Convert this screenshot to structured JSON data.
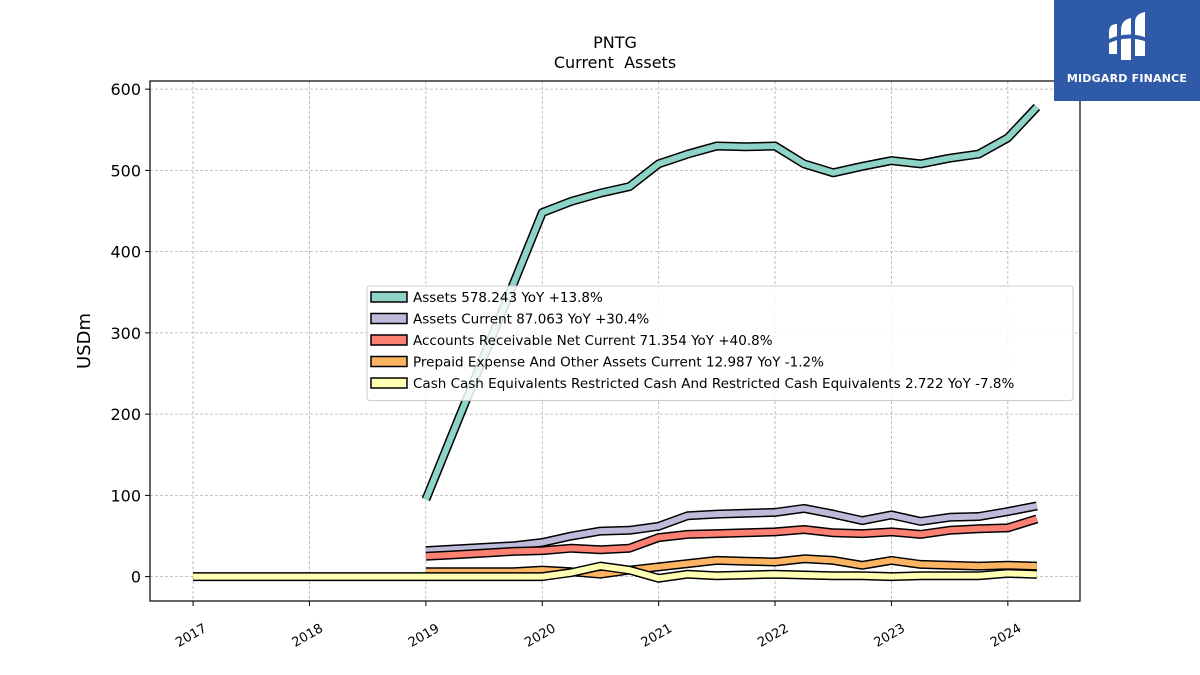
{
  "chart_data": {
    "type": "line",
    "title": "PNTG",
    "subtitle": "Current  Assets",
    "ylabel": "USDm",
    "xlabel": "",
    "ylim": [
      -30,
      610
    ],
    "xlim": [
      2016.63,
      2024.62
    ],
    "yticks": [
      0,
      100,
      200,
      300,
      400,
      500,
      600
    ],
    "xticks": [
      "2017",
      "2018",
      "2019",
      "2020",
      "2021",
      "2022",
      "2023",
      "2024"
    ],
    "grid": true,
    "legend_position": "center-right",
    "series": [
      {
        "name": "Assets",
        "legend_label": "Assets  578.243 YoY +13.8%",
        "color": "#8dd3c7",
        "points": [
          [
            2019.0,
            95
          ],
          [
            2020.0,
            448
          ],
          [
            2020.25,
            462
          ],
          [
            2020.5,
            472
          ],
          [
            2020.75,
            480
          ],
          [
            2021.0,
            508
          ],
          [
            2021.25,
            520
          ],
          [
            2021.5,
            530
          ],
          [
            2021.75,
            529
          ],
          [
            2022.0,
            530
          ],
          [
            2022.25,
            508
          ],
          [
            2022.5,
            497
          ],
          [
            2022.75,
            505
          ],
          [
            2023.0,
            512
          ],
          [
            2023.25,
            508
          ],
          [
            2023.5,
            515
          ],
          [
            2023.75,
            520
          ],
          [
            2024.0,
            540
          ],
          [
            2024.25,
            578
          ]
        ]
      },
      {
        "name": "Assets Current",
        "legend_label": "Assets Current  87.063 YoY +30.4%",
        "color": "#bebada",
        "points": [
          [
            2019.0,
            32
          ],
          [
            2019.25,
            34
          ],
          [
            2019.5,
            36
          ],
          [
            2019.75,
            38
          ],
          [
            2020.0,
            42
          ],
          [
            2020.25,
            50
          ],
          [
            2020.5,
            56
          ],
          [
            2020.75,
            57
          ],
          [
            2021.0,
            62
          ],
          [
            2021.25,
            75
          ],
          [
            2021.5,
            77
          ],
          [
            2021.75,
            78
          ],
          [
            2022.0,
            79
          ],
          [
            2022.25,
            84
          ],
          [
            2022.5,
            77
          ],
          [
            2022.75,
            69
          ],
          [
            2023.0,
            76
          ],
          [
            2023.25,
            68
          ],
          [
            2023.5,
            73
          ],
          [
            2023.75,
            74
          ],
          [
            2024.0,
            80
          ],
          [
            2024.25,
            87
          ]
        ]
      },
      {
        "name": "Accounts Receivable Net Current",
        "legend_label": "Accounts Receivable Net Current  71.354 YoY +40.8%",
        "color": "#fb8072",
        "points": [
          [
            2019.0,
            25
          ],
          [
            2019.25,
            27
          ],
          [
            2019.5,
            29
          ],
          [
            2019.75,
            31
          ],
          [
            2020.0,
            32
          ],
          [
            2020.25,
            35
          ],
          [
            2020.5,
            33
          ],
          [
            2020.75,
            35
          ],
          [
            2021.0,
            48
          ],
          [
            2021.25,
            52
          ],
          [
            2021.5,
            53
          ],
          [
            2021.75,
            54
          ],
          [
            2022.0,
            55
          ],
          [
            2022.25,
            58
          ],
          [
            2022.5,
            54
          ],
          [
            2022.75,
            53
          ],
          [
            2023.0,
            55
          ],
          [
            2023.25,
            52
          ],
          [
            2023.5,
            57
          ],
          [
            2023.75,
            59
          ],
          [
            2024.0,
            60
          ],
          [
            2024.25,
            71
          ]
        ]
      },
      {
        "name": "Prepaid Expense And Other Assets Current",
        "legend_label": "Prepaid Expense And Other Assets Current  12.987 YoY -1.2%",
        "color": "#fdb462",
        "points": [
          [
            2019.0,
            6
          ],
          [
            2019.5,
            6
          ],
          [
            2019.75,
            6
          ],
          [
            2020.0,
            8
          ],
          [
            2020.25,
            6
          ],
          [
            2020.5,
            3
          ],
          [
            2020.75,
            8
          ],
          [
            2021.0,
            12
          ],
          [
            2021.25,
            16
          ],
          [
            2021.5,
            20
          ],
          [
            2021.75,
            19
          ],
          [
            2022.0,
            18
          ],
          [
            2022.25,
            22
          ],
          [
            2022.5,
            20
          ],
          [
            2022.75,
            14
          ],
          [
            2023.0,
            20
          ],
          [
            2023.25,
            15
          ],
          [
            2023.5,
            14
          ],
          [
            2023.75,
            13
          ],
          [
            2024.0,
            14
          ],
          [
            2024.25,
            13
          ]
        ]
      },
      {
        "name": "Cash Cash Equivalents Restricted Cash And Restricted Cash Equivalents",
        "legend_label": "Cash Cash Equivalents Restricted Cash And Restricted Cash Equivalents  2.722 YoY -7.8%",
        "color": "#ffffb3",
        "points": [
          [
            2017.0,
            0
          ],
          [
            2017.5,
            0
          ],
          [
            2018.0,
            0
          ],
          [
            2018.5,
            0
          ],
          [
            2019.0,
            0
          ],
          [
            2019.5,
            0
          ],
          [
            2020.0,
            0
          ],
          [
            2020.25,
            5
          ],
          [
            2020.5,
            13
          ],
          [
            2020.75,
            8
          ],
          [
            2021.0,
            -2
          ],
          [
            2021.25,
            3
          ],
          [
            2021.5,
            1
          ],
          [
            2021.75,
            2
          ],
          [
            2022.0,
            3
          ],
          [
            2022.25,
            2
          ],
          [
            2022.5,
            1
          ],
          [
            2022.75,
            1
          ],
          [
            2023.0,
            0
          ],
          [
            2023.25,
            1
          ],
          [
            2023.5,
            1
          ],
          [
            2023.75,
            1
          ],
          [
            2024.0,
            4
          ],
          [
            2024.25,
            2.7
          ]
        ]
      }
    ]
  },
  "branding": {
    "logo_text": "MIDGARD FINANCE",
    "logo_bg_color": "#2e5aa8"
  }
}
